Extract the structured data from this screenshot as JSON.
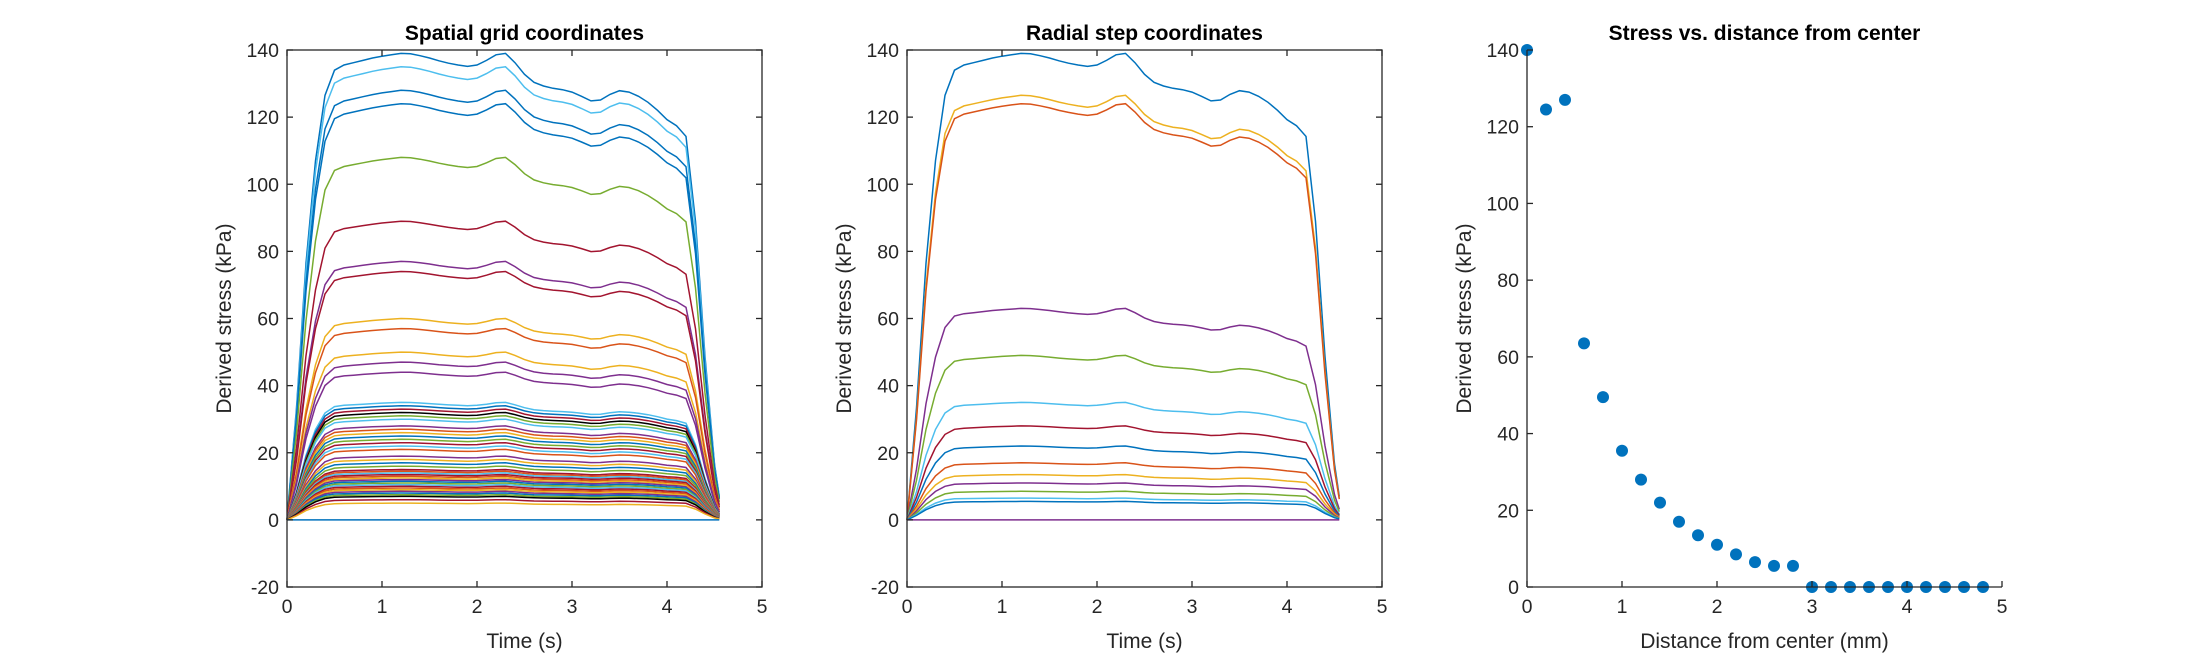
{
  "figure": {
    "background": "#ffffff",
    "axes_color": "#262626",
    "color_order": [
      "#0072BD",
      "#D95319",
      "#EDB120",
      "#7E2F8E",
      "#77AC30",
      "#4DBEEE",
      "#A2142F"
    ]
  },
  "chart_data": [
    {
      "type": "line",
      "title": "Spatial grid coordinates",
      "xlabel": "Time (s)",
      "ylabel": "Derived stress (kPa)",
      "xlim": [
        0,
        5
      ],
      "ylim": [
        -20,
        140
      ],
      "xticks": [
        0,
        1,
        2,
        3,
        4,
        5
      ],
      "yticks": [
        -20,
        0,
        20,
        40,
        60,
        80,
        100,
        120,
        140
      ],
      "grid": false,
      "legend": "none",
      "x": [
        0,
        0.1,
        0.2,
        0.3,
        0.4,
        0.5,
        0.6,
        0.7,
        0.8,
        0.9,
        1.0,
        1.1,
        1.2,
        1.3,
        1.4,
        1.5,
        1.6,
        1.7,
        1.8,
        1.9,
        2.0,
        2.1,
        2.2,
        2.3,
        2.4,
        2.5,
        2.6,
        2.7,
        2.8,
        2.9,
        3.0,
        3.1,
        3.2,
        3.3,
        3.4,
        3.5,
        3.6,
        3.7,
        3.8,
        3.9,
        4.0,
        4.1,
        4.2,
        4.3,
        4.4,
        4.5,
        4.55
      ],
      "profile": [
        0,
        0.24,
        0.55,
        0.77,
        0.91,
        0.964,
        0.975,
        0.98,
        0.985,
        0.99,
        0.994,
        0.997,
        1.0,
        0.999,
        0.995,
        0.99,
        0.984,
        0.979,
        0.975,
        0.972,
        0.975,
        0.985,
        0.997,
        1.0,
        0.98,
        0.955,
        0.938,
        0.93,
        0.925,
        0.922,
        0.917,
        0.908,
        0.898,
        0.9,
        0.912,
        0.92,
        0.917,
        0.908,
        0.895,
        0.878,
        0.858,
        0.845,
        0.822,
        0.64,
        0.35,
        0.12,
        0.05
      ],
      "peaks": [
        139,
        135,
        128,
        124,
        108,
        89,
        77,
        74,
        60,
        57,
        50,
        47,
        44,
        35,
        34,
        33,
        32,
        31,
        30,
        28,
        27,
        26,
        25,
        24,
        23,
        22,
        21,
        19,
        18,
        17,
        16,
        15,
        14.5,
        14,
        13.5,
        13,
        12.5,
        12,
        11.5,
        11,
        10.5,
        10,
        9.5,
        9,
        8.5,
        8,
        7.5,
        7,
        6,
        5,
        0
      ],
      "colors": [
        "#0072BD",
        "#4DBEEE",
        "#0072BD",
        "#0072BD",
        "#77AC30",
        "#A2142F",
        "#7E2F8E",
        "#A2142F",
        "#EDB120",
        "#D95319",
        "#EDB120",
        "#7E2F8E",
        "#7E2F8E",
        "#4DBEEE",
        "#0072BD",
        "#A2142F",
        "#000000",
        "#77AC30",
        "#4DBEEE",
        "#7E2F8E",
        "#D95319",
        "#EDB120",
        "#0072BD",
        "#77AC30",
        "#A2142F",
        "#4DBEEE",
        "#D95319",
        "#7E2F8E",
        "#EDB120",
        "#0072BD",
        "#77AC30",
        "#A2142F",
        "#D95319",
        "#4DBEEE",
        "#A2142F",
        "#D95319",
        "#EDB120",
        "#7E2F8E",
        "#0072BD",
        "#77AC30",
        "#4DBEEE",
        "#A2142F",
        "#D95319",
        "#EDB120",
        "#7E2F8E",
        "#0072BD",
        "#77AC30",
        "#000000",
        "#A2142F",
        "#EDB120",
        "#0072BD"
      ]
    },
    {
      "type": "line",
      "title": "Radial step coordinates",
      "xlabel": "Time (s)",
      "ylabel": "Derived stress (kPa)",
      "xlim": [
        0,
        5
      ],
      "ylim": [
        -20,
        140
      ],
      "xticks": [
        0,
        1,
        2,
        3,
        4,
        5
      ],
      "yticks": [
        -20,
        0,
        20,
        40,
        60,
        80,
        100,
        120,
        140
      ],
      "grid": false,
      "legend": "none",
      "x": [
        0,
        0.1,
        0.2,
        0.3,
        0.4,
        0.5,
        0.6,
        0.7,
        0.8,
        0.9,
        1.0,
        1.1,
        1.2,
        1.3,
        1.4,
        1.5,
        1.6,
        1.7,
        1.8,
        1.9,
        2.0,
        2.1,
        2.2,
        2.3,
        2.4,
        2.5,
        2.6,
        2.7,
        2.8,
        2.9,
        3.0,
        3.1,
        3.2,
        3.3,
        3.4,
        3.5,
        3.6,
        3.7,
        3.8,
        3.9,
        4.0,
        4.1,
        4.2,
        4.3,
        4.4,
        4.5,
        4.55
      ],
      "profile": [
        0,
        0.24,
        0.55,
        0.77,
        0.91,
        0.964,
        0.975,
        0.98,
        0.985,
        0.99,
        0.994,
        0.997,
        1.0,
        0.999,
        0.995,
        0.99,
        0.984,
        0.979,
        0.975,
        0.972,
        0.975,
        0.985,
        0.997,
        1.0,
        0.98,
        0.955,
        0.938,
        0.93,
        0.925,
        0.922,
        0.917,
        0.908,
        0.898,
        0.9,
        0.912,
        0.92,
        0.917,
        0.908,
        0.895,
        0.878,
        0.858,
        0.845,
        0.822,
        0.64,
        0.35,
        0.12,
        0.05
      ],
      "peaks": [
        139,
        126.5,
        124,
        63,
        49,
        35,
        28,
        22,
        17,
        13.5,
        11,
        8.5,
        6.5,
        5.5,
        0
      ],
      "colors": [
        "#0072BD",
        "#EDB120",
        "#D95319",
        "#7E2F8E",
        "#77AC30",
        "#4DBEEE",
        "#A2142F",
        "#0072BD",
        "#D95319",
        "#EDB120",
        "#7E2F8E",
        "#77AC30",
        "#4DBEEE",
        "#0072BD",
        "#7E2F8E"
      ]
    },
    {
      "type": "scatter",
      "title": "Stress vs. distance from center",
      "xlabel": "Distance from center (mm)",
      "ylabel": "Derived stress (kPa)",
      "xlim": [
        0,
        5
      ],
      "ylim": [
        0,
        140
      ],
      "xticks": [
        0,
        1,
        2,
        3,
        4,
        5
      ],
      "yticks": [
        0,
        20,
        40,
        60,
        80,
        100,
        120,
        140
      ],
      "grid": false,
      "legend": "none",
      "color": "#0072BD",
      "x": [
        0,
        0.2,
        0.4,
        0.6,
        0.8,
        1.0,
        1.2,
        1.4,
        1.6,
        1.8,
        2.0,
        2.2,
        2.4,
        2.6,
        2.8,
        3.0,
        3.2,
        3.4,
        3.6,
        3.8,
        4.0,
        4.2,
        4.4,
        4.6,
        4.8
      ],
      "y": [
        140,
        124.5,
        127,
        63.5,
        49.5,
        35.5,
        28,
        22,
        17,
        13.5,
        11,
        8.5,
        6.5,
        5.5,
        5.5,
        0,
        0,
        0,
        0,
        0,
        0,
        0,
        0,
        0,
        0
      ]
    }
  ]
}
